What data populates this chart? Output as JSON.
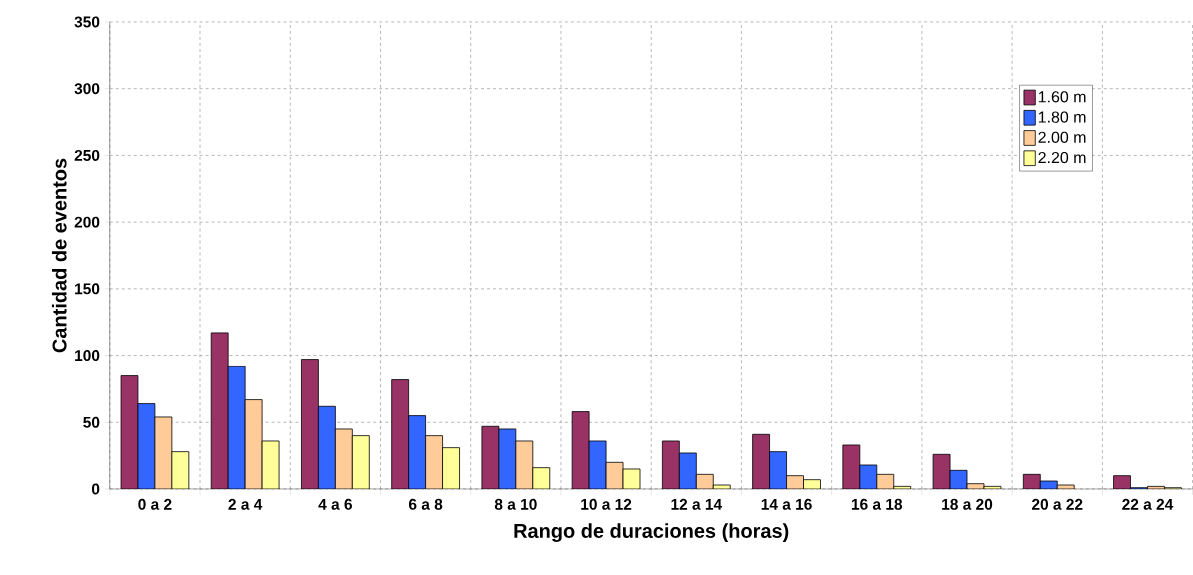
{
  "chart_data": {
    "type": "bar",
    "xlabel": "Rango de duraciones (horas)",
    "ylabel": "Cantidad de eventos",
    "categories": [
      "0 a 2",
      "2 a 4",
      "4 a 6",
      "6 a 8",
      "8 a 10",
      "10 a 12",
      "12 a 14",
      "14 a 16",
      "16 a 18",
      "18 a 20",
      "20 a 22",
      "22 a 24"
    ],
    "series": [
      {
        "name": "1.60 m",
        "color": "#993366",
        "values": [
          85,
          117,
          97,
          82,
          47,
          58,
          36,
          41,
          33,
          26,
          11,
          10
        ]
      },
      {
        "name": "1.80 m",
        "color": "#3366ff",
        "values": [
          64,
          92,
          62,
          55,
          45,
          36,
          27,
          28,
          18,
          14,
          6,
          1
        ]
      },
      {
        "name": "2.00 m",
        "color": "#ffcc99",
        "values": [
          54,
          67,
          45,
          40,
          36,
          20,
          11,
          10,
          11,
          4,
          3,
          2
        ]
      },
      {
        "name": "2.20 m",
        "color": "#ffff99",
        "values": [
          28,
          36,
          40,
          31,
          16,
          15,
          3,
          7,
          2,
          2,
          null,
          1
        ]
      }
    ],
    "ylim": [
      0,
      350
    ],
    "yticks": [
      0,
      50,
      100,
      150,
      200,
      250,
      300,
      350
    ],
    "grid": true,
    "legend": "top right"
  }
}
